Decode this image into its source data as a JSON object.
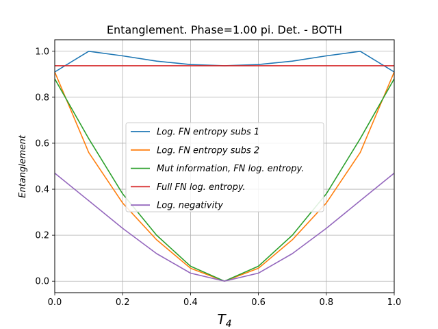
{
  "chart_data": {
    "type": "line",
    "title": "Entanglement. Phase=1.00 pi. Det. - BOTH",
    "xlabel": "T",
    "xlabel_sub": "4",
    "ylabel": "Entanglement",
    "xlim": [
      0,
      1
    ],
    "ylim": [
      -0.05,
      1.05
    ],
    "grid": true,
    "legend_position": "center",
    "x": [
      0.0,
      0.1,
      0.2,
      0.3,
      0.4,
      0.5,
      0.6,
      0.7,
      0.8,
      0.9,
      1.0
    ],
    "xticks": [
      "0.0",
      "0.2",
      "0.4",
      "0.6",
      "0.8",
      "1.0"
    ],
    "yticks": [
      "0.0",
      "0.2",
      "0.4",
      "0.6",
      "0.8",
      "1.0"
    ],
    "series": [
      {
        "name": "Log. FN entropy subs 1",
        "color": "#1f77b4",
        "values": [
          0.91,
          1.0,
          0.98,
          0.957,
          0.942,
          0.937,
          0.942,
          0.957,
          0.98,
          1.0,
          0.91
        ]
      },
      {
        "name": "Log. FN entropy subs 2",
        "color": "#ff7f0e",
        "values": [
          0.91,
          0.56,
          0.34,
          0.18,
          0.056,
          0.0,
          0.056,
          0.18,
          0.34,
          0.56,
          0.91
        ]
      },
      {
        "name": "Mut information, FN log. entropy.",
        "color": "#2ca02c",
        "values": [
          0.88,
          0.62,
          0.38,
          0.2,
          0.065,
          0.0,
          0.065,
          0.2,
          0.38,
          0.62,
          0.88
        ]
      },
      {
        "name": "Full FN log. entropy.",
        "color": "#d62728",
        "values": [
          0.937,
          0.937,
          0.937,
          0.937,
          0.937,
          0.937,
          0.937,
          0.937,
          0.937,
          0.937,
          0.937
        ]
      },
      {
        "name": "Log. negativity",
        "color": "#9467bd",
        "values": [
          0.47,
          0.35,
          0.23,
          0.12,
          0.035,
          0.0,
          0.035,
          0.12,
          0.23,
          0.35,
          0.47
        ]
      }
    ]
  }
}
